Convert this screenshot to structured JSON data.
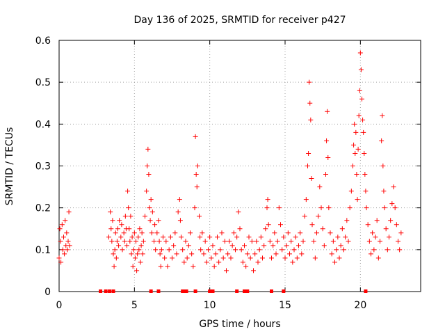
{
  "chart_data": {
    "type": "scatter",
    "title": "Day 136 of 2025, SRMTID for receiver p427",
    "xlabel": "GPS time / hours",
    "ylabel": "SRMTID / TECUs",
    "xlim": [
      0,
      24
    ],
    "ylim": [
      0,
      0.6
    ],
    "xticks": [
      0,
      5,
      10,
      15,
      20
    ],
    "xtick_labels": [
      "0",
      "5",
      "10",
      "15",
      "20"
    ],
    "yticks": [
      0,
      0.1,
      0.2,
      0.3,
      0.4,
      0.5,
      0.6
    ],
    "ytick_labels": [
      "0",
      "0.1",
      "0.2",
      "0.3",
      "0.4",
      "0.5",
      "0.6"
    ],
    "grid": true,
    "marker": "plus",
    "color": "#ff0000",
    "series": [
      {
        "name": "SRMTID",
        "points": [
          [
            0.0,
            0.08
          ],
          [
            0.05,
            0.15
          ],
          [
            0.1,
            0.12
          ],
          [
            0.12,
            0.07
          ],
          [
            0.2,
            0.16
          ],
          [
            0.25,
            0.1
          ],
          [
            0.3,
            0.13
          ],
          [
            0.35,
            0.09
          ],
          [
            0.4,
            0.17
          ],
          [
            0.45,
            0.11
          ],
          [
            0.5,
            0.14
          ],
          [
            0.55,
            0.1
          ],
          [
            0.6,
            0.12
          ],
          [
            0.65,
            0.19
          ],
          [
            0.7,
            0.11
          ],
          [
            3.3,
            0.13
          ],
          [
            3.4,
            0.19
          ],
          [
            3.45,
            0.15
          ],
          [
            3.5,
            0.12
          ],
          [
            3.55,
            0.17
          ],
          [
            3.6,
            0.09
          ],
          [
            3.65,
            0.06
          ],
          [
            3.7,
            0.1
          ],
          [
            3.75,
            0.14
          ],
          [
            3.8,
            0.08
          ],
          [
            3.85,
            0.12
          ],
          [
            3.9,
            0.15
          ],
          [
            3.95,
            0.11
          ],
          [
            4.0,
            0.17
          ],
          [
            4.1,
            0.13
          ],
          [
            4.15,
            0.16
          ],
          [
            4.2,
            0.1
          ],
          [
            4.3,
            0.14
          ],
          [
            4.35,
            0.12
          ],
          [
            4.4,
            0.18
          ],
          [
            4.45,
            0.15
          ],
          [
            4.5,
            0.11
          ],
          [
            4.55,
            0.24
          ],
          [
            4.6,
            0.2
          ],
          [
            4.65,
            0.15
          ],
          [
            4.7,
            0.12
          ],
          [
            4.75,
            0.18
          ],
          [
            4.8,
            0.09
          ],
          [
            4.85,
            0.13
          ],
          [
            4.9,
            0.06
          ],
          [
            4.95,
            0.1
          ],
          [
            5.0,
            0.14
          ],
          [
            5.05,
            0.08
          ],
          [
            5.1,
            0.12
          ],
          [
            5.15,
            0.05
          ],
          [
            5.2,
            0.09
          ],
          [
            5.25,
            0.13
          ],
          [
            5.3,
            0.1
          ],
          [
            5.35,
            0.15
          ],
          [
            5.4,
            0.07
          ],
          [
            5.45,
            0.11
          ],
          [
            5.5,
            0.14
          ],
          [
            5.55,
            0.09
          ],
          [
            5.6,
            0.12
          ],
          [
            5.7,
            0.18
          ],
          [
            5.8,
            0.24
          ],
          [
            5.85,
            0.3
          ],
          [
            5.9,
            0.34
          ],
          [
            5.95,
            0.28
          ],
          [
            6.0,
            0.2
          ],
          [
            6.05,
            0.17
          ],
          [
            6.1,
            0.22
          ],
          [
            6.15,
            0.14
          ],
          [
            6.2,
            0.19
          ],
          [
            6.3,
            0.12
          ],
          [
            6.35,
            0.16
          ],
          [
            6.4,
            0.1
          ],
          [
            6.5,
            0.14
          ],
          [
            6.6,
            0.17
          ],
          [
            6.65,
            0.12
          ],
          [
            6.7,
            0.09
          ],
          [
            6.75,
            0.06
          ],
          [
            6.8,
            0.1
          ],
          [
            6.9,
            0.13
          ],
          [
            7.0,
            0.08
          ],
          [
            7.1,
            0.12
          ],
          [
            7.2,
            0.06
          ],
          [
            7.3,
            0.1
          ],
          [
            7.4,
            0.13
          ],
          [
            7.5,
            0.08
          ],
          [
            7.6,
            0.11
          ],
          [
            7.7,
            0.14
          ],
          [
            7.8,
            0.09
          ],
          [
            7.9,
            0.19
          ],
          [
            8.0,
            0.22
          ],
          [
            8.05,
            0.17
          ],
          [
            8.1,
            0.13
          ],
          [
            8.2,
            0.1
          ],
          [
            8.3,
            0.07
          ],
          [
            8.4,
            0.12
          ],
          [
            8.5,
            0.08
          ],
          [
            8.6,
            0.11
          ],
          [
            8.7,
            0.14
          ],
          [
            8.8,
            0.09
          ],
          [
            8.9,
            0.06
          ],
          [
            9.0,
            0.2
          ],
          [
            9.05,
            0.37
          ],
          [
            9.1,
            0.28
          ],
          [
            9.15,
            0.25
          ],
          [
            9.2,
            0.3
          ],
          [
            9.3,
            0.18
          ],
          [
            9.35,
            0.13
          ],
          [
            9.4,
            0.1
          ],
          [
            9.5,
            0.14
          ],
          [
            9.6,
            0.09
          ],
          [
            9.7,
            0.12
          ],
          [
            9.8,
            0.07
          ],
          [
            9.9,
            0.1
          ],
          [
            10.0,
            0.13
          ],
          [
            10.1,
            0.08
          ],
          [
            10.2,
            0.11
          ],
          [
            10.3,
            0.06
          ],
          [
            10.4,
            0.09
          ],
          [
            10.5,
            0.13
          ],
          [
            10.6,
            0.07
          ],
          [
            10.7,
            0.1
          ],
          [
            10.8,
            0.14
          ],
          [
            10.9,
            0.08
          ],
          [
            11.0,
            0.12
          ],
          [
            11.1,
            0.05
          ],
          [
            11.2,
            0.09
          ],
          [
            11.3,
            0.12
          ],
          [
            11.4,
            0.08
          ],
          [
            11.5,
            0.11
          ],
          [
            11.6,
            0.14
          ],
          [
            11.7,
            0.1
          ],
          [
            11.8,
            0.13
          ],
          [
            11.9,
            0.19
          ],
          [
            12.0,
            0.15
          ],
          [
            12.1,
            0.1
          ],
          [
            12.2,
            0.07
          ],
          [
            12.3,
            0.11
          ],
          [
            12.4,
            0.06
          ],
          [
            12.5,
            0.09
          ],
          [
            12.6,
            0.13
          ],
          [
            12.7,
            0.08
          ],
          [
            12.8,
            0.12
          ],
          [
            12.9,
            0.05
          ],
          [
            13.0,
            0.09
          ],
          [
            13.1,
            0.12
          ],
          [
            13.2,
            0.07
          ],
          [
            13.3,
            0.1
          ],
          [
            13.4,
            0.13
          ],
          [
            13.5,
            0.08
          ],
          [
            13.6,
            0.11
          ],
          [
            13.7,
            0.15
          ],
          [
            13.8,
            0.2
          ],
          [
            13.85,
            0.22
          ],
          [
            13.9,
            0.16
          ],
          [
            14.0,
            0.12
          ],
          [
            14.1,
            0.08
          ],
          [
            14.2,
            0.11
          ],
          [
            14.3,
            0.14
          ],
          [
            14.4,
            0.09
          ],
          [
            14.5,
            0.12
          ],
          [
            14.6,
            0.2
          ],
          [
            14.7,
            0.16
          ],
          [
            14.8,
            0.1
          ],
          [
            14.9,
            0.13
          ],
          [
            15.0,
            0.08
          ],
          [
            15.1,
            0.11
          ],
          [
            15.2,
            0.14
          ],
          [
            15.3,
            0.09
          ],
          [
            15.4,
            0.12
          ],
          [
            15.5,
            0.07
          ],
          [
            15.6,
            0.1
          ],
          [
            15.7,
            0.13
          ],
          [
            15.8,
            0.08
          ],
          [
            15.9,
            0.11
          ],
          [
            16.0,
            0.14
          ],
          [
            16.1,
            0.09
          ],
          [
            16.2,
            0.12
          ],
          [
            16.3,
            0.18
          ],
          [
            16.4,
            0.22
          ],
          [
            16.5,
            0.3
          ],
          [
            16.55,
            0.33
          ],
          [
            16.6,
            0.5
          ],
          [
            16.65,
            0.45
          ],
          [
            16.7,
            0.41
          ],
          [
            16.75,
            0.27
          ],
          [
            16.8,
            0.16
          ],
          [
            16.9,
            0.12
          ],
          [
            17.0,
            0.08
          ],
          [
            17.1,
            0.14
          ],
          [
            17.2,
            0.18
          ],
          [
            17.3,
            0.25
          ],
          [
            17.4,
            0.2
          ],
          [
            17.5,
            0.15
          ],
          [
            17.6,
            0.11
          ],
          [
            17.7,
            0.28
          ],
          [
            17.75,
            0.36
          ],
          [
            17.8,
            0.43
          ],
          [
            17.85,
            0.32
          ],
          [
            17.9,
            0.2
          ],
          [
            18.0,
            0.14
          ],
          [
            18.1,
            0.09
          ],
          [
            18.2,
            0.12
          ],
          [
            18.3,
            0.07
          ],
          [
            18.4,
            0.1
          ],
          [
            18.5,
            0.13
          ],
          [
            18.6,
            0.08
          ],
          [
            18.7,
            0.11
          ],
          [
            18.8,
            0.15
          ],
          [
            18.9,
            0.1
          ],
          [
            19.0,
            0.13
          ],
          [
            19.1,
            0.17
          ],
          [
            19.2,
            0.12
          ],
          [
            19.3,
            0.2
          ],
          [
            19.4,
            0.24
          ],
          [
            19.5,
            0.3
          ],
          [
            19.55,
            0.35
          ],
          [
            19.6,
            0.4
          ],
          [
            19.65,
            0.33
          ],
          [
            19.7,
            0.38
          ],
          [
            19.75,
            0.28
          ],
          [
            19.8,
            0.22
          ],
          [
            19.85,
            0.34
          ],
          [
            19.9,
            0.42
          ],
          [
            19.95,
            0.48
          ],
          [
            20.0,
            0.57
          ],
          [
            20.05,
            0.53
          ],
          [
            20.1,
            0.46
          ],
          [
            20.15,
            0.41
          ],
          [
            20.2,
            0.38
          ],
          [
            20.25,
            0.33
          ],
          [
            20.3,
            0.28
          ],
          [
            20.35,
            0.24
          ],
          [
            20.4,
            0.2
          ],
          [
            20.5,
            0.16
          ],
          [
            20.6,
            0.12
          ],
          [
            20.7,
            0.09
          ],
          [
            20.8,
            0.14
          ],
          [
            20.9,
            0.1
          ],
          [
            21.0,
            0.13
          ],
          [
            21.1,
            0.17
          ],
          [
            21.2,
            0.08
          ],
          [
            21.3,
            0.12
          ],
          [
            21.4,
            0.36
          ],
          [
            21.45,
            0.42
          ],
          [
            21.5,
            0.3
          ],
          [
            21.55,
            0.24
          ],
          [
            21.6,
            0.2
          ],
          [
            21.7,
            0.15
          ],
          [
            21.8,
            0.1
          ],
          [
            21.9,
            0.13
          ],
          [
            22.0,
            0.17
          ],
          [
            22.1,
            0.21
          ],
          [
            22.2,
            0.25
          ],
          [
            22.3,
            0.2
          ],
          [
            22.4,
            0.16
          ],
          [
            22.5,
            0.12
          ],
          [
            22.6,
            0.1
          ],
          [
            22.7,
            0.14
          ],
          [
            2.75,
            0.0
          ],
          [
            3.1,
            0.0
          ],
          [
            3.35,
            0.0
          ],
          [
            3.6,
            0.0
          ],
          [
            6.1,
            0.0
          ],
          [
            6.6,
            0.0
          ],
          [
            8.2,
            0.0
          ],
          [
            8.35,
            0.0
          ],
          [
            8.45,
            0.0
          ],
          [
            9.05,
            0.0
          ],
          [
            10.0,
            0.0
          ],
          [
            10.2,
            0.0
          ],
          [
            11.8,
            0.0
          ],
          [
            12.3,
            0.0
          ],
          [
            12.5,
            0.0
          ],
          [
            14.1,
            0.0
          ],
          [
            14.9,
            0.0
          ],
          [
            20.35,
            0.0
          ]
        ]
      }
    ]
  }
}
